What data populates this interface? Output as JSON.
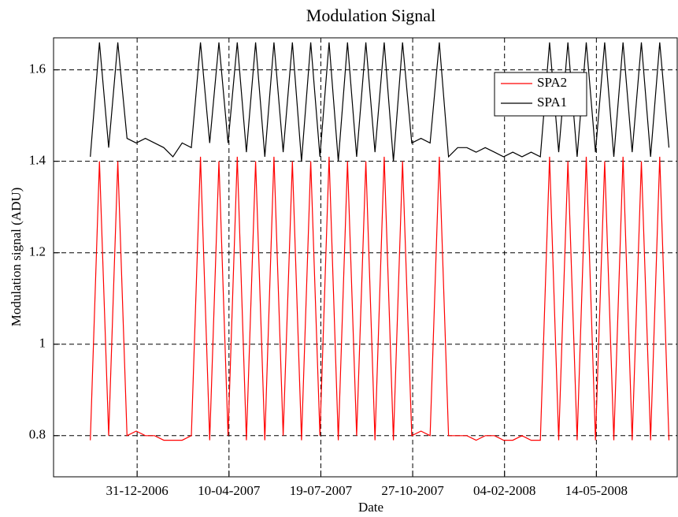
{
  "chart_data": {
    "type": "line",
    "title": "Modulation Signal",
    "x_label": "Date",
    "y_label": "Modulation signal (ADU)",
    "x": [
      "2006-11-10",
      "2006-11-20",
      "2006-11-30",
      "2006-12-10",
      "2006-12-20",
      "2006-12-30",
      "2007-01-09",
      "2007-01-19",
      "2007-01-29",
      "2007-02-08",
      "2007-02-18",
      "2007-02-28",
      "2007-03-10",
      "2007-03-20",
      "2007-03-30",
      "2007-04-09",
      "2007-04-19",
      "2007-04-29",
      "2007-05-09",
      "2007-05-19",
      "2007-05-29",
      "2007-06-08",
      "2007-06-18",
      "2007-06-28",
      "2007-07-08",
      "2007-07-18",
      "2007-07-28",
      "2007-08-07",
      "2007-08-17",
      "2007-08-27",
      "2007-09-06",
      "2007-09-16",
      "2007-09-26",
      "2007-10-06",
      "2007-10-16",
      "2007-10-26",
      "2007-11-05",
      "2007-11-15",
      "2007-11-25",
      "2007-12-05",
      "2007-12-15",
      "2007-12-25",
      "2008-01-04",
      "2008-01-14",
      "2008-01-24",
      "2008-02-03",
      "2008-02-13",
      "2008-02-23",
      "2008-03-04",
      "2008-03-14",
      "2008-03-24",
      "2008-04-03",
      "2008-04-13",
      "2008-04-23",
      "2008-05-03",
      "2008-05-13",
      "2008-05-23",
      "2008-06-02",
      "2008-06-12",
      "2008-06-22",
      "2008-07-02",
      "2008-07-12",
      "2008-07-22",
      "2008-08-01"
    ],
    "series": [
      {
        "name": "SPA2",
        "color": "#ff0000",
        "values": [
          0.79,
          1.4,
          0.8,
          1.4,
          0.8,
          0.81,
          0.8,
          0.8,
          0.79,
          0.79,
          0.79,
          0.8,
          1.41,
          0.79,
          1.4,
          0.8,
          1.41,
          0.79,
          1.4,
          0.79,
          1.41,
          0.8,
          1.4,
          0.79,
          1.4,
          0.8,
          1.41,
          0.79,
          1.4,
          0.8,
          1.4,
          0.79,
          1.41,
          0.79,
          1.4,
          0.8,
          0.81,
          0.8,
          1.41,
          0.8,
          0.8,
          0.8,
          0.79,
          0.8,
          0.8,
          0.79,
          0.79,
          0.8,
          0.79,
          0.79,
          1.41,
          0.79,
          1.4,
          0.79,
          1.41,
          0.79,
          1.4,
          0.79,
          1.41,
          0.79,
          1.4,
          0.79,
          1.41,
          0.79
        ]
      },
      {
        "name": "SPA1",
        "color": "#000000",
        "values": [
          1.41,
          1.66,
          1.43,
          1.66,
          1.45,
          1.44,
          1.45,
          1.44,
          1.43,
          1.41,
          1.44,
          1.43,
          1.66,
          1.44,
          1.66,
          1.44,
          1.66,
          1.42,
          1.66,
          1.41,
          1.66,
          1.42,
          1.66,
          1.4,
          1.66,
          1.41,
          1.66,
          1.4,
          1.66,
          1.41,
          1.66,
          1.42,
          1.66,
          1.4,
          1.66,
          1.44,
          1.45,
          1.44,
          1.66,
          1.41,
          1.43,
          1.43,
          1.42,
          1.43,
          1.42,
          1.41,
          1.42,
          1.41,
          1.42,
          1.41,
          1.66,
          1.42,
          1.66,
          1.41,
          1.66,
          1.42,
          1.66,
          1.41,
          1.66,
          1.42,
          1.66,
          1.41,
          1.66,
          1.43
        ]
      }
    ],
    "xlim": [
      "2006-10-01",
      "2008-08-10"
    ],
    "xticks": [
      {
        "value": "2006-12-31",
        "label": "31-12-2006"
      },
      {
        "value": "2007-04-10",
        "label": "10-04-2007"
      },
      {
        "value": "2007-07-19",
        "label": "19-07-2007"
      },
      {
        "value": "2007-10-27",
        "label": "27-10-2007"
      },
      {
        "value": "2008-02-04",
        "label": "04-02-2008"
      },
      {
        "value": "2008-05-14",
        "label": "14-05-2008"
      }
    ],
    "ylim": [
      0.71,
      1.67
    ],
    "yticks": [
      0.8,
      1,
      1.2,
      1.4,
      1.6
    ],
    "grid": true,
    "legend": "upper right"
  }
}
